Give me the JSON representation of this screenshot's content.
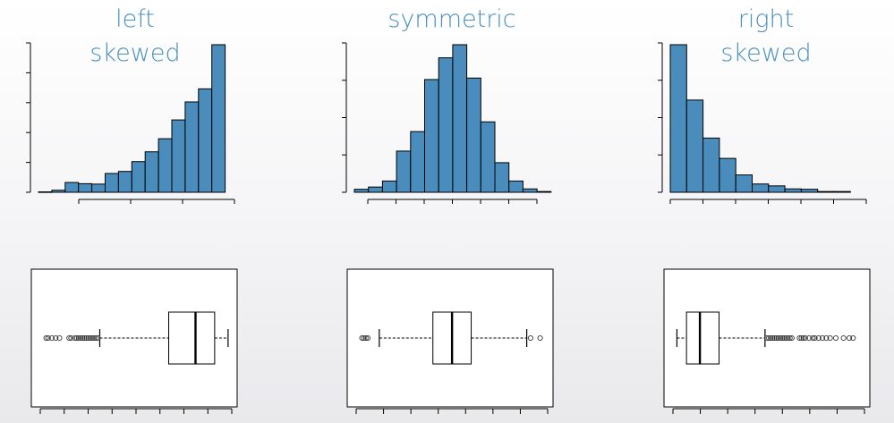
{
  "panels": [
    {
      "title_lines": [
        "left",
        "skewed"
      ],
      "key": "left"
    },
    {
      "title_lines": [
        "symmetric"
      ],
      "key": "symmetric"
    },
    {
      "title_lines": [
        "right",
        "skewed"
      ],
      "key": "right"
    }
  ],
  "colors": {
    "bar_fill": "#4a8cbc",
    "title": "#4a90bf",
    "background": "#f4f4f6"
  },
  "chart_data": [
    {
      "type": "bar",
      "name": "left-histogram",
      "title": "left skewed",
      "values": [
        1,
        5,
        24,
        21,
        20,
        46,
        51,
        75,
        99,
        131,
        177,
        221,
        253,
        361
      ],
      "ylim": [
        0,
        361
      ],
      "yticks": 6,
      "xticks": 4
    },
    {
      "type": "bar",
      "name": "symmetric-histogram",
      "title": "symmetric",
      "values": [
        8,
        14,
        30,
        110,
        162,
        301,
        359,
        394,
        305,
        188,
        79,
        30,
        9,
        2
      ],
      "ylim": [
        0,
        394
      ],
      "yticks": 5,
      "xticks": 7
    },
    {
      "type": "bar",
      "name": "right-histogram",
      "title": "right skewed",
      "values": [
        392,
        245,
        144,
        90,
        46,
        22,
        17,
        9,
        8,
        2,
        2
      ],
      "ylim": [
        0,
        392
      ],
      "yticks": 5,
      "xticks": 7
    },
    {
      "type": "boxplot",
      "name": "left-boxplot",
      "xlim": [
        0,
        1
      ],
      "whisker_low": 0.32,
      "q1": 0.68,
      "median": 0.82,
      "q3": 0.92,
      "whisker_high": 0.99,
      "outliers": [
        0.04,
        0.05,
        0.07,
        0.09,
        0.11,
        0.16,
        0.17,
        0.19,
        0.2,
        0.21,
        0.22,
        0.23,
        0.24,
        0.25,
        0.26,
        0.27,
        0.28,
        0.29,
        0.3,
        0.31
      ],
      "xticks": 9
    },
    {
      "type": "boxplot",
      "name": "symmetric-boxplot",
      "xlim": [
        0,
        1
      ],
      "whisker_low": 0.13,
      "q1": 0.41,
      "median": 0.51,
      "q3": 0.61,
      "whisker_high": 0.9,
      "outliers": [
        0.04,
        0.05,
        0.06,
        0.07,
        0.92,
        0.97
      ],
      "xticks": 8
    },
    {
      "type": "boxplot",
      "name": "right-boxplot",
      "xlim": [
        0,
        1
      ],
      "whisker_low": 0.03,
      "q1": 0.08,
      "median": 0.15,
      "q3": 0.25,
      "whisker_high": 0.49,
      "outliers": [
        0.5,
        0.51,
        0.52,
        0.53,
        0.54,
        0.55,
        0.56,
        0.57,
        0.58,
        0.59,
        0.6,
        0.61,
        0.62,
        0.63,
        0.67,
        0.68,
        0.69,
        0.7,
        0.72,
        0.74,
        0.75,
        0.77,
        0.79,
        0.81,
        0.83,
        0.86,
        0.9,
        0.93,
        0.95
      ],
      "xticks": 8
    }
  ]
}
